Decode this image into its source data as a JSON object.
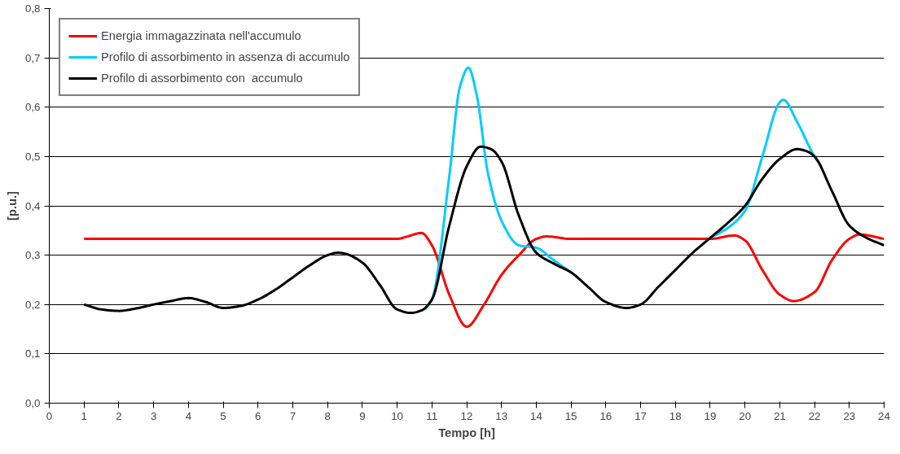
{
  "chart_data": {
    "type": "line",
    "xlabel": "Tempo [h]",
    "ylabel": "[p.u.]",
    "series": [
      {
        "name": "Energia immagazzinata nell'accumulo",
        "color": "#ff0000",
        "x": [
          1,
          10,
          10.3,
          10.7,
          11,
          11.5,
          12,
          12.5,
          13,
          13.5,
          14,
          14.3,
          15,
          19,
          19.7,
          20,
          20.5,
          21,
          21.4,
          22,
          22.5,
          23,
          23.3,
          24
        ],
        "values": [
          0.333,
          0.333,
          0.338,
          0.345,
          0.32,
          0.22,
          0.155,
          0.2,
          0.26,
          0.3,
          0.333,
          0.338,
          0.333,
          0.333,
          0.34,
          0.33,
          0.27,
          0.22,
          0.207,
          0.225,
          0.29,
          0.333,
          0.342,
          0.333
        ]
      },
      {
        "name": "Profilo di assorbimento in assenza di accumulo",
        "color": "#00ccff",
        "x": [
          10.8,
          11,
          11.5,
          11.8,
          12.05,
          12.3,
          12.6,
          13,
          13.5,
          14,
          14.5,
          15,
          null,
          19,
          19.5,
          20,
          20.5,
          21,
          21.1,
          21.5,
          22,
          22.2
        ],
        "values": [
          0.19,
          0.21,
          0.46,
          0.64,
          0.68,
          0.62,
          0.47,
          0.37,
          0.32,
          0.315,
          0.29,
          0.265,
          null,
          0.335,
          0.355,
          0.39,
          0.5,
          0.61,
          0.615,
          0.57,
          0.5,
          0.48
        ]
      },
      {
        "name": "Profilo di assorbimento con  accumulo",
        "color": "#000000",
        "x": [
          1,
          1.5,
          2,
          2.5,
          3,
          3.5,
          4,
          4.5,
          5,
          5.5,
          6,
          6.5,
          7,
          7.5,
          8,
          8.3,
          8.5,
          9,
          9.5,
          10,
          10.4,
          10.7,
          11,
          11.5,
          12,
          12.4,
          12.7,
          13,
          13.5,
          14,
          14.5,
          15,
          15.5,
          16,
          16.6,
          17,
          17.5,
          18,
          18.5,
          19,
          19.5,
          20,
          20.5,
          21,
          21.5,
          21.8,
          22,
          22.5,
          23,
          23.5,
          24
        ],
        "values": [
          0.2,
          0.19,
          0.187,
          0.192,
          0.2,
          0.207,
          0.213,
          0.205,
          0.193,
          0.197,
          0.21,
          0.23,
          0.255,
          0.28,
          0.3,
          0.305,
          0.303,
          0.285,
          0.24,
          0.19,
          0.183,
          0.188,
          0.21,
          0.36,
          0.48,
          0.52,
          0.515,
          0.49,
          0.38,
          0.305,
          0.283,
          0.265,
          0.235,
          0.205,
          0.193,
          0.2,
          0.235,
          0.27,
          0.305,
          0.335,
          0.365,
          0.4,
          0.455,
          0.495,
          0.515,
          0.51,
          0.5,
          0.43,
          0.36,
          0.335,
          0.32
        ]
      }
    ],
    "xlim": [
      0,
      24
    ],
    "xticks": [
      0,
      1,
      2,
      3,
      4,
      5,
      6,
      7,
      8,
      9,
      10,
      11,
      12,
      13,
      14,
      15,
      16,
      17,
      18,
      19,
      20,
      21,
      22,
      23,
      24
    ],
    "ylim": [
      0,
      0.8
    ],
    "yticks": [
      {
        "value": 0,
        "label": "0,0"
      },
      {
        "value": 0.1,
        "label": "0,1"
      },
      {
        "value": 0.2,
        "label": "0,2"
      },
      {
        "value": 0.3,
        "label": "0,3"
      },
      {
        "value": 0.4,
        "label": "0,4"
      },
      {
        "value": 0.5,
        "label": "0,5"
      },
      {
        "value": 0.6,
        "label": "0,6"
      },
      {
        "value": 0.7,
        "label": "0,7"
      },
      {
        "value": 0.8,
        "label": "0,8"
      }
    ],
    "grid": "y",
    "legend": "top left",
    "line_style": "solid"
  }
}
